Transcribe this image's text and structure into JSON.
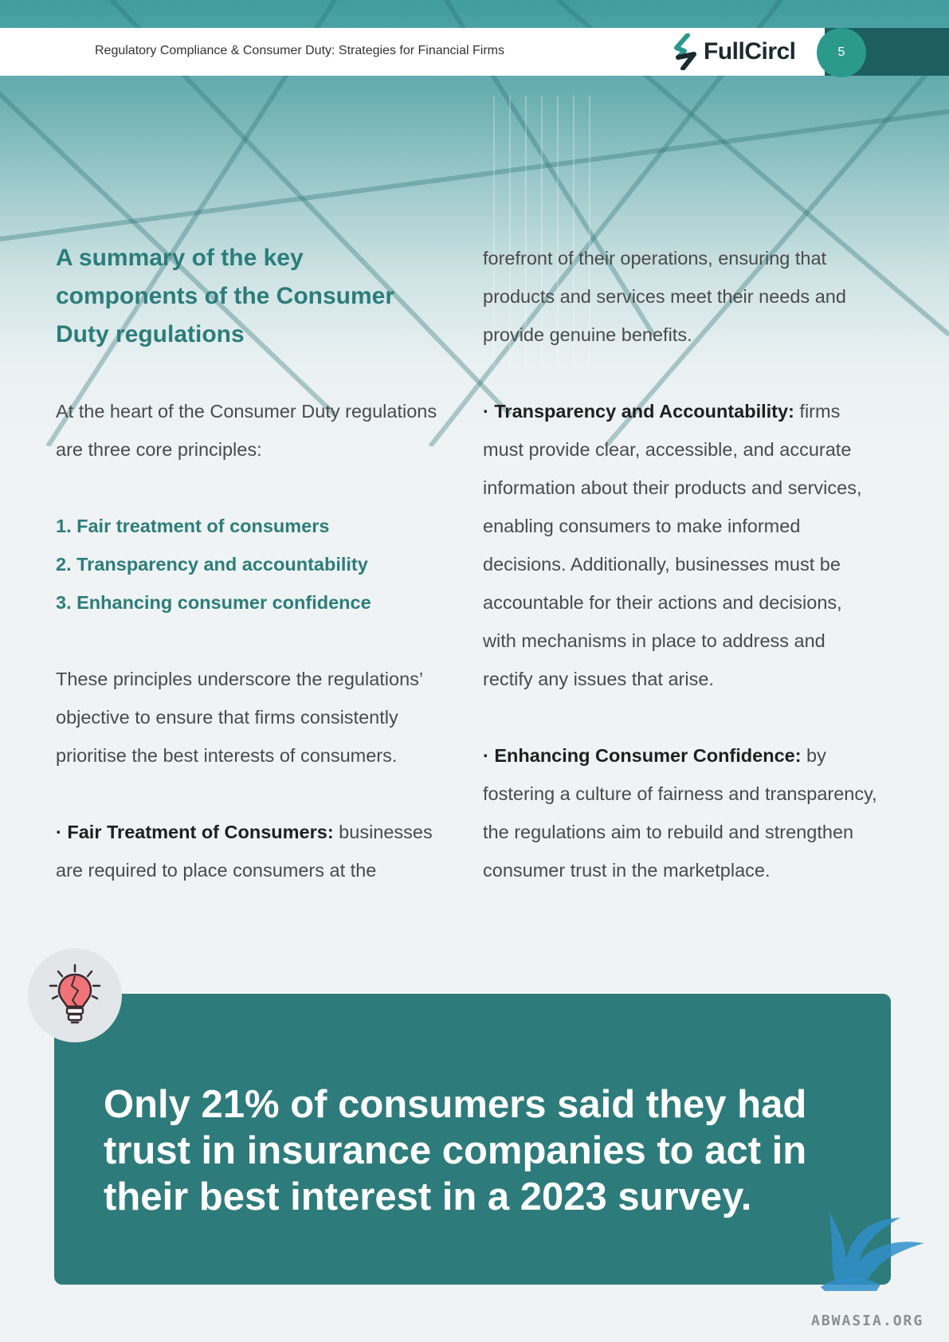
{
  "header": {
    "title": "Regulatory Compliance & Consumer Duty: Strategies for Financial Firms",
    "logo_text": "FullCircl",
    "page_number": "5"
  },
  "left_column": {
    "heading_lines": [
      "A summary of the key",
      "components of the Consumer",
      "Duty regulations"
    ],
    "intro_lines": [
      "At the heart of the Consumer Duty regulations",
      "are three core principles:"
    ],
    "principles": [
      "1. Fair treatment of consumers",
      "2. Transparency and accountability",
      "3. Enhancing consumer confidence"
    ],
    "summary_lines": [
      "These principles underscore the regulations’",
      "objective to ensure that firms consistently",
      "prioritise the best interests of consumers."
    ],
    "fair_treatment": {
      "bullet": "·",
      "label": "Fair Treatment of Consumers:",
      "line1_rest": " businesses",
      "line2": "are required to place consumers at the"
    }
  },
  "right_column": {
    "continuation_lines": [
      "forefront of their operations, ensuring that",
      "products and services meet their needs and",
      "provide genuine benefits."
    ],
    "transparency": {
      "bullet": "·",
      "label": "Transparency and Accountability:",
      "line1_rest": " firms",
      "lines": [
        "must provide clear, accessible, and accurate",
        "information about their products and services,",
        "enabling consumers to make informed",
        "decisions. Additionally, businesses must be",
        "accountable for their actions and decisions,",
        "with mechanisms in place to address and",
        "rectify any issues that arise."
      ]
    },
    "confidence": {
      "bullet": "·",
      "label": "Enhancing Consumer Confidence:",
      "line1_rest": " by",
      "lines": [
        "fostering a culture of fairness and transparency,",
        "the regulations aim to rebuild and strengthen",
        "consumer trust in the marketplace."
      ]
    }
  },
  "callout": {
    "icon": "lightbulb-icon",
    "lines": [
      "Only 21% of consumers said they had",
      "trust in insurance companies to act in",
      "their best interest in a 2023 survey."
    ]
  },
  "watermark": {
    "icon": "griffin-icon",
    "text": "ABWASIA.ORG"
  },
  "colors": {
    "accent": "#2b7d7a",
    "callout_bg": "#2e7b7b",
    "page_badge": "#2b9a8d",
    "header_bar": "#1d5f60"
  }
}
